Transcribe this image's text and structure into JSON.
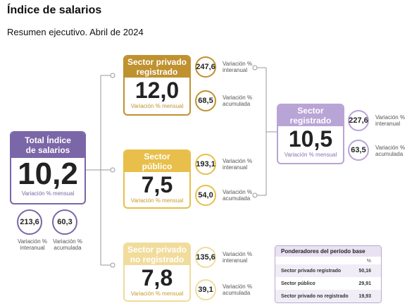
{
  "header": {
    "title": "Índice de salarios",
    "subtitle": "Resumen ejecutivo. Abril de 2024"
  },
  "colors": {
    "total": "#7b66a8",
    "privado_registrado": "#c0912f",
    "publico": "#e8bf4a",
    "privado_no_registrado": "#f1dc9c",
    "registrado": "#b9a4d6"
  },
  "total": {
    "label_line1": "Total Índice",
    "label_line2": "de salarios",
    "value": "10,2",
    "caption": "Variación % mensual",
    "interanual": "213,6",
    "acumulada": "60,3",
    "interanual_label_1": "Variación %",
    "interanual_label_2": "interanual",
    "acumulada_label_1": "Variación %",
    "acumulada_label_2": "acumulada"
  },
  "privado_registrado": {
    "label_line1": "Sector privado",
    "label_line2": "registrado",
    "value": "12,0",
    "caption": "Variación % mensual",
    "interanual": "247,6",
    "acumulada": "68,5",
    "interanual_label_1": "Variación %",
    "interanual_label_2": "interanual",
    "acumulada_label_1": "Variación %",
    "acumulada_label_2": "acumulada"
  },
  "publico": {
    "label_line1": "Sector",
    "label_line2": "público",
    "value": "7,5",
    "caption": "Variación % mensual",
    "interanual": "193,1",
    "acumulada": "54,0",
    "interanual_label_1": "Variación %",
    "interanual_label_2": "interanual",
    "acumulada_label_1": "Variación %",
    "acumulada_label_2": "acumulada"
  },
  "privado_no_registrado": {
    "label_line1": "Sector privado",
    "label_line2": "no registrado",
    "value": "7,8",
    "caption": "Variación % mensual",
    "interanual": "135,6",
    "acumulada": "39,1",
    "interanual_label_1": "Variación %",
    "interanual_label_2": "interanual",
    "acumulada_label_1": "Variación %",
    "acumulada_label_2": "acumulada"
  },
  "registrado": {
    "label_line1": "Sector",
    "label_line2": "registrado",
    "value": "10,5",
    "caption": "Variación % mensual",
    "interanual": "227,6",
    "acumulada": "63,5",
    "interanual_label_1": "Variación %",
    "interanual_label_2": "interanual",
    "acumulada_label_1": "Variación %",
    "acumulada_label_2": "acumulada"
  },
  "ponderadores": {
    "title": "Ponderadores del período base",
    "unit": "%",
    "rows": [
      {
        "label": "Sector privado registrado",
        "value": "50,16"
      },
      {
        "label": "Sector público",
        "value": "29,91"
      },
      {
        "label": "Sector privado no registrado",
        "value": "19,93"
      }
    ]
  }
}
